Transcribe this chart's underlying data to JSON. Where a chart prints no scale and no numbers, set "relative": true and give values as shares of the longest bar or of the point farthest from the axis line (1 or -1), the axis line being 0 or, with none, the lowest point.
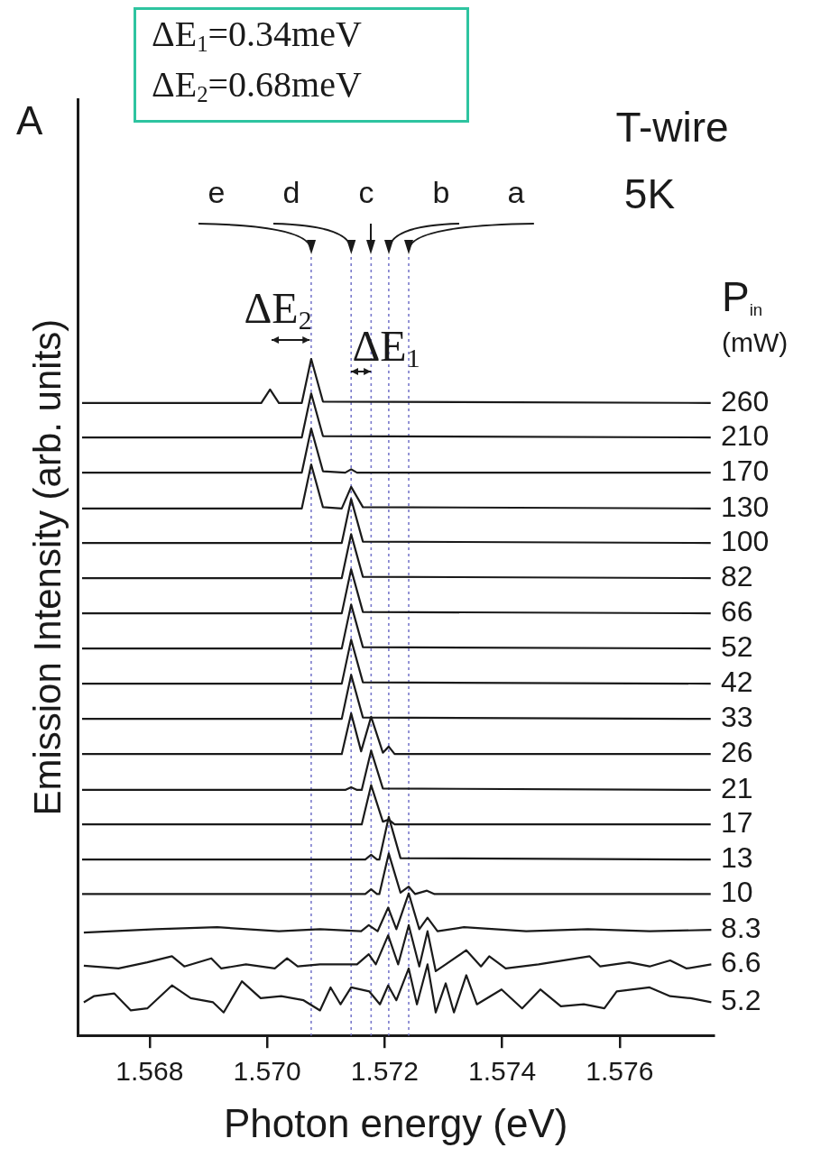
{
  "chart_data": {
    "type": "line",
    "xlabel": "Photon energy (eV)",
    "ylabel": "Emission Intensity (arb. units)",
    "legend_title": "P$_{in}$ (mW)",
    "annotations": [
      "A",
      "ΔE$_{1}$=0.34meV",
      "ΔE$_{2}$=0.68meV",
      "T-wire",
      "5K",
      "ΔE$_{2}$",
      "ΔE$_{1}$"
    ],
    "relative": true,
    "grid": false,
    "legend": false,
    "marker": "none",
    "line_style": "solid",
    "xlim": [
      1.56678,
      1.5776
    ],
    "xticks": [
      1.568,
      {
        "value": 1.57,
        "label": "1.570"
      },
      1.572,
      1.574,
      1.576
    ],
    "ref_lines": [
      {
        "axis": "x",
        "value": 1.57075,
        "label": "e",
        "color": "#7a7acc",
        "line_style": "dotted"
      },
      {
        "axis": "x",
        "value": 1.57143,
        "label": "d",
        "color": "#7a7acc",
        "line_style": "dotted"
      },
      {
        "axis": "x",
        "value": 1.57177,
        "label": "c",
        "color": "#7a7acc",
        "line_style": "dotted"
      },
      {
        "axis": "x",
        "value": 1.57207,
        "label": "b",
        "color": "#7a7acc",
        "line_style": "dotted"
      },
      {
        "axis": "x",
        "value": 1.57241,
        "label": "a",
        "color": "#7a7acc",
        "line_style": "dotted"
      }
    ],
    "series": [
      {
        "name": "260",
        "color": "#1a1a1a",
        "x": [
          1.56685,
          1.5699,
          1.57005,
          1.5702,
          1.57059,
          1.57075,
          1.57095,
          1.57755
        ],
        "values": [
          0.935,
          0.935,
          0.955,
          0.935,
          0.935,
          1.0,
          0.937,
          0.935
        ]
      },
      {
        "name": "210",
        "color": "#1a1a1a",
        "x": [
          1.56685,
          1.57059,
          1.57075,
          1.57095,
          1.57755
        ],
        "values": [
          0.884,
          0.884,
          0.949,
          0.886,
          0.884
        ]
      },
      {
        "name": "170",
        "color": "#1a1a1a",
        "x": [
          1.56685,
          1.57059,
          1.57075,
          1.57095,
          1.57133,
          1.57143,
          1.57153,
          1.57755
        ],
        "values": [
          0.832,
          0.832,
          0.897,
          0.834,
          0.832,
          0.837,
          0.832,
          0.832
        ]
      },
      {
        "name": "130",
        "color": "#1a1a1a",
        "x": [
          1.56685,
          1.57059,
          1.57075,
          1.57095,
          1.57127,
          1.57143,
          1.57163,
          1.57755
        ],
        "values": [
          0.779,
          0.779,
          0.844,
          0.781,
          0.779,
          0.811,
          0.781,
          0.779
        ]
      },
      {
        "name": "100",
        "color": "#1a1a1a",
        "x": [
          1.56685,
          1.57127,
          1.57143,
          1.57163,
          1.57755
        ],
        "values": [
          0.728,
          0.728,
          0.793,
          0.73,
          0.728
        ]
      },
      {
        "name": "82",
        "color": "#1a1a1a",
        "x": [
          1.56685,
          1.57127,
          1.57143,
          1.57163,
          1.57755
        ],
        "values": [
          0.676,
          0.676,
          0.741,
          0.678,
          0.676
        ]
      },
      {
        "name": "66",
        "color": "#1a1a1a",
        "x": [
          1.56685,
          1.57127,
          1.57143,
          1.57163,
          1.57755
        ],
        "values": [
          0.624,
          0.624,
          0.689,
          0.626,
          0.624
        ]
      },
      {
        "name": "52",
        "color": "#1a1a1a",
        "x": [
          1.56685,
          1.57127,
          1.57143,
          1.57163,
          1.57755
        ],
        "values": [
          0.572,
          0.572,
          0.637,
          0.574,
          0.572
        ]
      },
      {
        "name": "42",
        "color": "#1a1a1a",
        "x": [
          1.56685,
          1.57127,
          1.57143,
          1.57163,
          1.57755
        ],
        "values": [
          0.52,
          0.52,
          0.585,
          0.522,
          0.52
        ]
      },
      {
        "name": "33",
        "color": "#1a1a1a",
        "x": [
          1.56685,
          1.57127,
          1.57143,
          1.57163,
          1.57755
        ],
        "values": [
          0.468,
          0.468,
          0.533,
          0.47,
          0.468
        ]
      },
      {
        "name": "26",
        "color": "#1a1a1a",
        "x": [
          1.56685,
          1.57127,
          1.57143,
          1.5716,
          1.57177,
          1.57197,
          1.57207,
          1.57217,
          1.57755
        ],
        "values": [
          0.416,
          0.416,
          0.476,
          0.42,
          0.471,
          0.418,
          0.427,
          0.416,
          0.416
        ]
      },
      {
        "name": "21",
        "color": "#1a1a1a",
        "x": [
          1.56685,
          1.57133,
          1.57143,
          1.57153,
          1.57161,
          1.57177,
          1.57197,
          1.57755
        ],
        "values": [
          0.363,
          0.363,
          0.367,
          0.363,
          0.363,
          0.421,
          0.365,
          0.363
        ]
      },
      {
        "name": "17",
        "color": "#1a1a1a",
        "x": [
          1.56685,
          1.57161,
          1.57177,
          1.57197,
          1.57207,
          1.57217,
          1.57755
        ],
        "values": [
          0.312,
          0.312,
          0.37,
          0.316,
          0.319,
          0.312,
          0.312
        ]
      },
      {
        "name": "13",
        "color": "#1a1a1a",
        "x": [
          1.56685,
          1.57167,
          1.57177,
          1.57187,
          1.57191,
          1.57207,
          1.57227,
          1.57755
        ],
        "values": [
          0.26,
          0.26,
          0.267,
          0.26,
          0.26,
          0.323,
          0.262,
          0.26
        ]
      },
      {
        "name": "10",
        "color": "#1a1a1a",
        "x": [
          1.56685,
          1.57167,
          1.57177,
          1.57187,
          1.57191,
          1.57207,
          1.57227,
          1.57241,
          1.57252,
          1.57272,
          1.57285,
          1.57755
        ],
        "values": [
          0.209,
          0.209,
          0.216,
          0.209,
          0.209,
          0.269,
          0.211,
          0.22,
          0.209,
          0.214,
          0.209,
          0.209
        ]
      },
      {
        "name": "8.3",
        "color": "#1a1a1a",
        "x": [
          1.56688,
          1.5681,
          1.56915,
          1.5702,
          1.5709,
          1.5716,
          1.57173,
          1.57188,
          1.57206,
          1.5722,
          1.57241,
          1.57259,
          1.57273,
          1.5729,
          1.57335,
          1.57441,
          1.57546,
          1.57651,
          1.57756
        ],
        "values": [
          0.152,
          0.157,
          0.16,
          0.154,
          0.157,
          0.154,
          0.163,
          0.154,
          0.189,
          0.157,
          0.21,
          0.157,
          0.174,
          0.154,
          0.16,
          0.154,
          0.157,
          0.154,
          0.156
        ]
      },
      {
        "name": "6.6",
        "color": "#1a1a1a",
        "x": [
          1.56688,
          1.56747,
          1.56796,
          1.56838,
          1.56859,
          1.56905,
          1.56922,
          1.56964,
          1.57013,
          1.57034,
          1.57052,
          1.5709,
          1.57153,
          1.57173,
          1.57185,
          1.57206,
          1.57223,
          1.57241,
          1.57259,
          1.57273,
          1.57287,
          1.57304,
          1.57339,
          1.57364,
          1.57378,
          1.57406,
          1.57462,
          1.57549,
          1.57567,
          1.57616,
          1.57651,
          1.57686,
          1.57714,
          1.57756
        ],
        "values": [
          0.103,
          0.099,
          0.108,
          0.117,
          0.102,
          0.114,
          0.099,
          0.105,
          0.099,
          0.114,
          0.102,
          0.105,
          0.105,
          0.12,
          0.105,
          0.148,
          0.105,
          0.163,
          0.102,
          0.154,
          0.095,
          0.105,
          0.126,
          0.102,
          0.117,
          0.099,
          0.105,
          0.117,
          0.102,
          0.108,
          0.102,
          0.111,
          0.099,
          0.105
        ]
      },
      {
        "name": "5.2",
        "color": "#1a1a1a",
        "x": [
          1.56688,
          1.56705,
          1.5674,
          1.56768,
          1.56796,
          1.56838,
          1.5687,
          1.56908,
          1.56926,
          1.56957,
          1.56989,
          1.57024,
          1.57062,
          1.5709,
          1.57108,
          1.57125,
          1.57143,
          1.57174,
          1.57192,
          1.57206,
          1.5722,
          1.57241,
          1.57255,
          1.57273,
          1.57287,
          1.57304,
          1.57318,
          1.57339,
          1.57357,
          1.57399,
          1.57434,
          1.57465,
          1.575,
          1.57539,
          1.57574,
          1.57595,
          1.57651,
          1.57686,
          1.57721,
          1.57756
        ],
        "values": [
          0.049,
          0.058,
          0.062,
          0.037,
          0.04,
          0.074,
          0.055,
          0.049,
          0.034,
          0.08,
          0.055,
          0.058,
          0.052,
          0.037,
          0.071,
          0.046,
          0.071,
          0.065,
          0.046,
          0.074,
          0.052,
          0.099,
          0.046,
          0.105,
          0.034,
          0.077,
          0.034,
          0.089,
          0.046,
          0.068,
          0.04,
          0.068,
          0.043,
          0.046,
          0.04,
          0.065,
          0.071,
          0.058,
          0.055,
          0.049
        ]
      }
    ]
  }
}
